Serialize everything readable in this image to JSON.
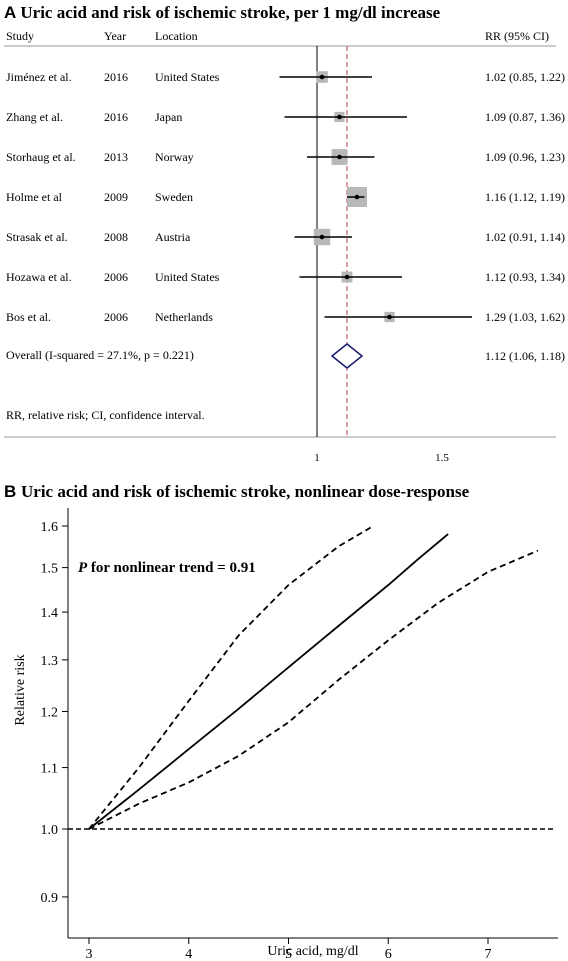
{
  "panel_a": {
    "letter": "A",
    "title": "Uric acid and risk of ischemic stroke, per 1 mg/dl increase",
    "headers": {
      "study": "Study",
      "year": "Year",
      "location": "Location",
      "rr": "RR (95% CI)"
    },
    "footnote": "RR, relative risk; CI, confidence interval.",
    "overall_label": "Overall  (I-squared = 27.1%, p = 0.221)"
  },
  "panel_b": {
    "letter": "B",
    "title": "Uric acid and risk of ischemic stroke, nonlinear dose-response",
    "annotation_p": "P",
    "annotation_rest": " for nonlinear trend = 0.91"
  },
  "colors": {
    "diamond": "#1a1a6e",
    "dashed_ref": "#c04040",
    "box": "#b8b8b8",
    "line": "#000000"
  },
  "chart_data": [
    {
      "type": "forest",
      "xlim": [
        0.75,
        1.72
      ],
      "xticks": [
        1,
        1.5
      ],
      "xticklabels": [
        "1",
        "1.5"
      ],
      "null_line": 1,
      "pooled_line": 1.12,
      "studies": [
        {
          "study": "Jiménez et al.",
          "year": "2016",
          "location": "United States",
          "rr": 1.02,
          "lo": 0.85,
          "hi": 1.22,
          "label": "1.02 (0.85, 1.22)",
          "weight": 0.4
        },
        {
          "study": "Zhang et al.",
          "year": "2016",
          "location": "Japan",
          "rr": 1.09,
          "lo": 0.87,
          "hi": 1.36,
          "label": "1.09 (0.87, 1.36)",
          "weight": 0.3
        },
        {
          "study": "Storhaug et al.",
          "year": "2013",
          "location": "Norway",
          "rr": 1.09,
          "lo": 0.96,
          "hi": 1.23,
          "label": "1.09 (0.96, 1.23)",
          "weight": 0.7
        },
        {
          "study": "Holme et al",
          "year": "2009",
          "location": "Sweden",
          "rr": 1.16,
          "lo": 1.12,
          "hi": 1.19,
          "label": "1.16 (1.12, 1.19)",
          "weight": 1.0
        },
        {
          "study": "Strasak et al.",
          "year": "2008",
          "location": "Austria",
          "rr": 1.02,
          "lo": 0.91,
          "hi": 1.14,
          "label": "1.02 (0.91, 1.14)",
          "weight": 0.75
        },
        {
          "study": "Hozawa et al.",
          "year": "2006",
          "location": "United States",
          "rr": 1.12,
          "lo": 0.93,
          "hi": 1.34,
          "label": "1.12 (0.93, 1.34)",
          "weight": 0.35
        },
        {
          "study": "Bos et al.",
          "year": "2006",
          "location": "Netherlands",
          "rr": 1.29,
          "lo": 1.03,
          "hi": 1.62,
          "label": "1.29 (1.03, 1.62)",
          "weight": 0.3
        }
      ],
      "overall": {
        "rr": 1.12,
        "lo": 1.06,
        "hi": 1.18,
        "label": "1.12 (1.06, 1.18)"
      }
    },
    {
      "type": "line",
      "xlabel": "Uric acid, mg/dl",
      "ylabel": "Relative risk",
      "xlim": [
        2.85,
        7.65
      ],
      "ylim": [
        0.87,
        1.64
      ],
      "log_y": true,
      "xticks": [
        3,
        4,
        5,
        6,
        7
      ],
      "yticks": [
        0.9,
        1.0,
        1.1,
        1.2,
        1.3,
        1.4,
        1.5,
        1.6
      ],
      "yticklabels": [
        "0.9",
        "1.0",
        "1.1",
        "1.2",
        "1.3",
        "1.4",
        "1.5",
        "1.6"
      ],
      "reference_y": 1.0,
      "series": [
        {
          "style": "solid",
          "x": [
            3.0,
            3.5,
            4.0,
            4.5,
            5.0,
            5.5,
            6.0,
            6.3,
            6.6
          ],
          "y": [
            1.0,
            1.063,
            1.132,
            1.205,
            1.285,
            1.37,
            1.46,
            1.52,
            1.58
          ]
        },
        {
          "style": "dashed",
          "x": [
            3.0,
            3.5,
            4.0,
            4.5,
            5.0,
            5.5,
            5.85
          ],
          "y": [
            1.0,
            1.1,
            1.22,
            1.35,
            1.46,
            1.55,
            1.6
          ]
        },
        {
          "style": "dashed",
          "x": [
            3.0,
            3.5,
            4.0,
            4.5,
            5.0,
            5.5,
            6.0,
            6.5,
            7.0,
            7.5
          ],
          "y": [
            1.0,
            1.04,
            1.075,
            1.12,
            1.18,
            1.26,
            1.34,
            1.42,
            1.49,
            1.54
          ]
        }
      ]
    }
  ]
}
